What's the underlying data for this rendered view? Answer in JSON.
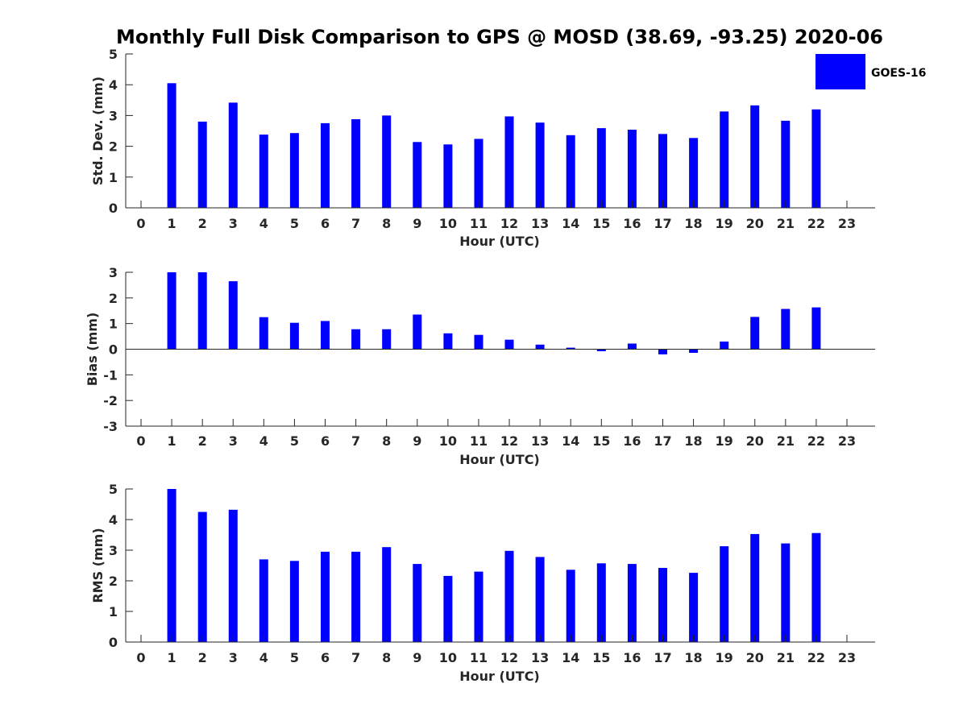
{
  "title": "Monthly Full Disk Comparison to GPS @ MOSD (38.69, -93.25) 2020-06",
  "legend": {
    "label": "GOES-16",
    "color": "#0000ff"
  },
  "chart_data": [
    {
      "type": "bar",
      "name": "std-dev",
      "title": "Monthly Full Disk Comparison to GPS @ MOSD (38.69, -93.25) 2020-06",
      "xlabel": "Hour (UTC)",
      "ylabel": "Std. Dev. (mm)",
      "ylim": [
        0,
        5
      ],
      "yticks": [
        "0",
        "1",
        "2",
        "3",
        "4",
        "5"
      ],
      "categories": [
        "0",
        "1",
        "2",
        "3",
        "4",
        "5",
        "6",
        "7",
        "8",
        "9",
        "10",
        "11",
        "12",
        "13",
        "14",
        "15",
        "16",
        "17",
        "18",
        "19",
        "20",
        "21",
        "22",
        "23"
      ],
      "series": [
        {
          "name": "GOES-16",
          "values": [
            null,
            4.05,
            2.8,
            3.42,
            2.38,
            2.43,
            2.75,
            2.88,
            3.0,
            2.14,
            2.06,
            2.24,
            2.97,
            2.77,
            2.36,
            2.59,
            2.54,
            2.4,
            2.27,
            3.13,
            3.33,
            2.83,
            3.2,
            null
          ]
        }
      ]
    },
    {
      "type": "bar",
      "name": "bias",
      "xlabel": "Hour (UTC)",
      "ylabel": "Bias (mm)",
      "ylim": [
        -3,
        3
      ],
      "yticks": [
        "-3",
        "-2",
        "-1",
        "0",
        "1",
        "2",
        "3"
      ],
      "categories": [
        "0",
        "1",
        "2",
        "3",
        "4",
        "5",
        "6",
        "7",
        "8",
        "9",
        "10",
        "11",
        "12",
        "13",
        "14",
        "15",
        "16",
        "17",
        "18",
        "19",
        "20",
        "21",
        "22",
        "23"
      ],
      "series": [
        {
          "name": "GOES-16",
          "values": [
            null,
            3.0,
            3.0,
            2.65,
            1.25,
            1.03,
            1.1,
            0.78,
            0.78,
            1.35,
            0.62,
            0.56,
            0.37,
            0.18,
            0.06,
            -0.08,
            0.22,
            -0.2,
            -0.14,
            0.3,
            1.26,
            1.57,
            1.63,
            null
          ]
        }
      ]
    },
    {
      "type": "bar",
      "name": "rms",
      "xlabel": "Hour (UTC)",
      "ylabel": "RMS (mm)",
      "ylim": [
        0,
        5
      ],
      "yticks": [
        "0",
        "1",
        "2",
        "3",
        "4",
        "5"
      ],
      "categories": [
        "0",
        "1",
        "2",
        "3",
        "4",
        "5",
        "6",
        "7",
        "8",
        "9",
        "10",
        "11",
        "12",
        "13",
        "14",
        "15",
        "16",
        "17",
        "18",
        "19",
        "20",
        "21",
        "22",
        "23"
      ],
      "series": [
        {
          "name": "GOES-16",
          "values": [
            null,
            5.0,
            4.25,
            4.32,
            2.7,
            2.65,
            2.95,
            2.95,
            3.1,
            2.55,
            2.16,
            2.3,
            2.98,
            2.78,
            2.36,
            2.57,
            2.55,
            2.42,
            2.26,
            3.13,
            3.53,
            3.22,
            3.56,
            null
          ]
        }
      ]
    }
  ]
}
